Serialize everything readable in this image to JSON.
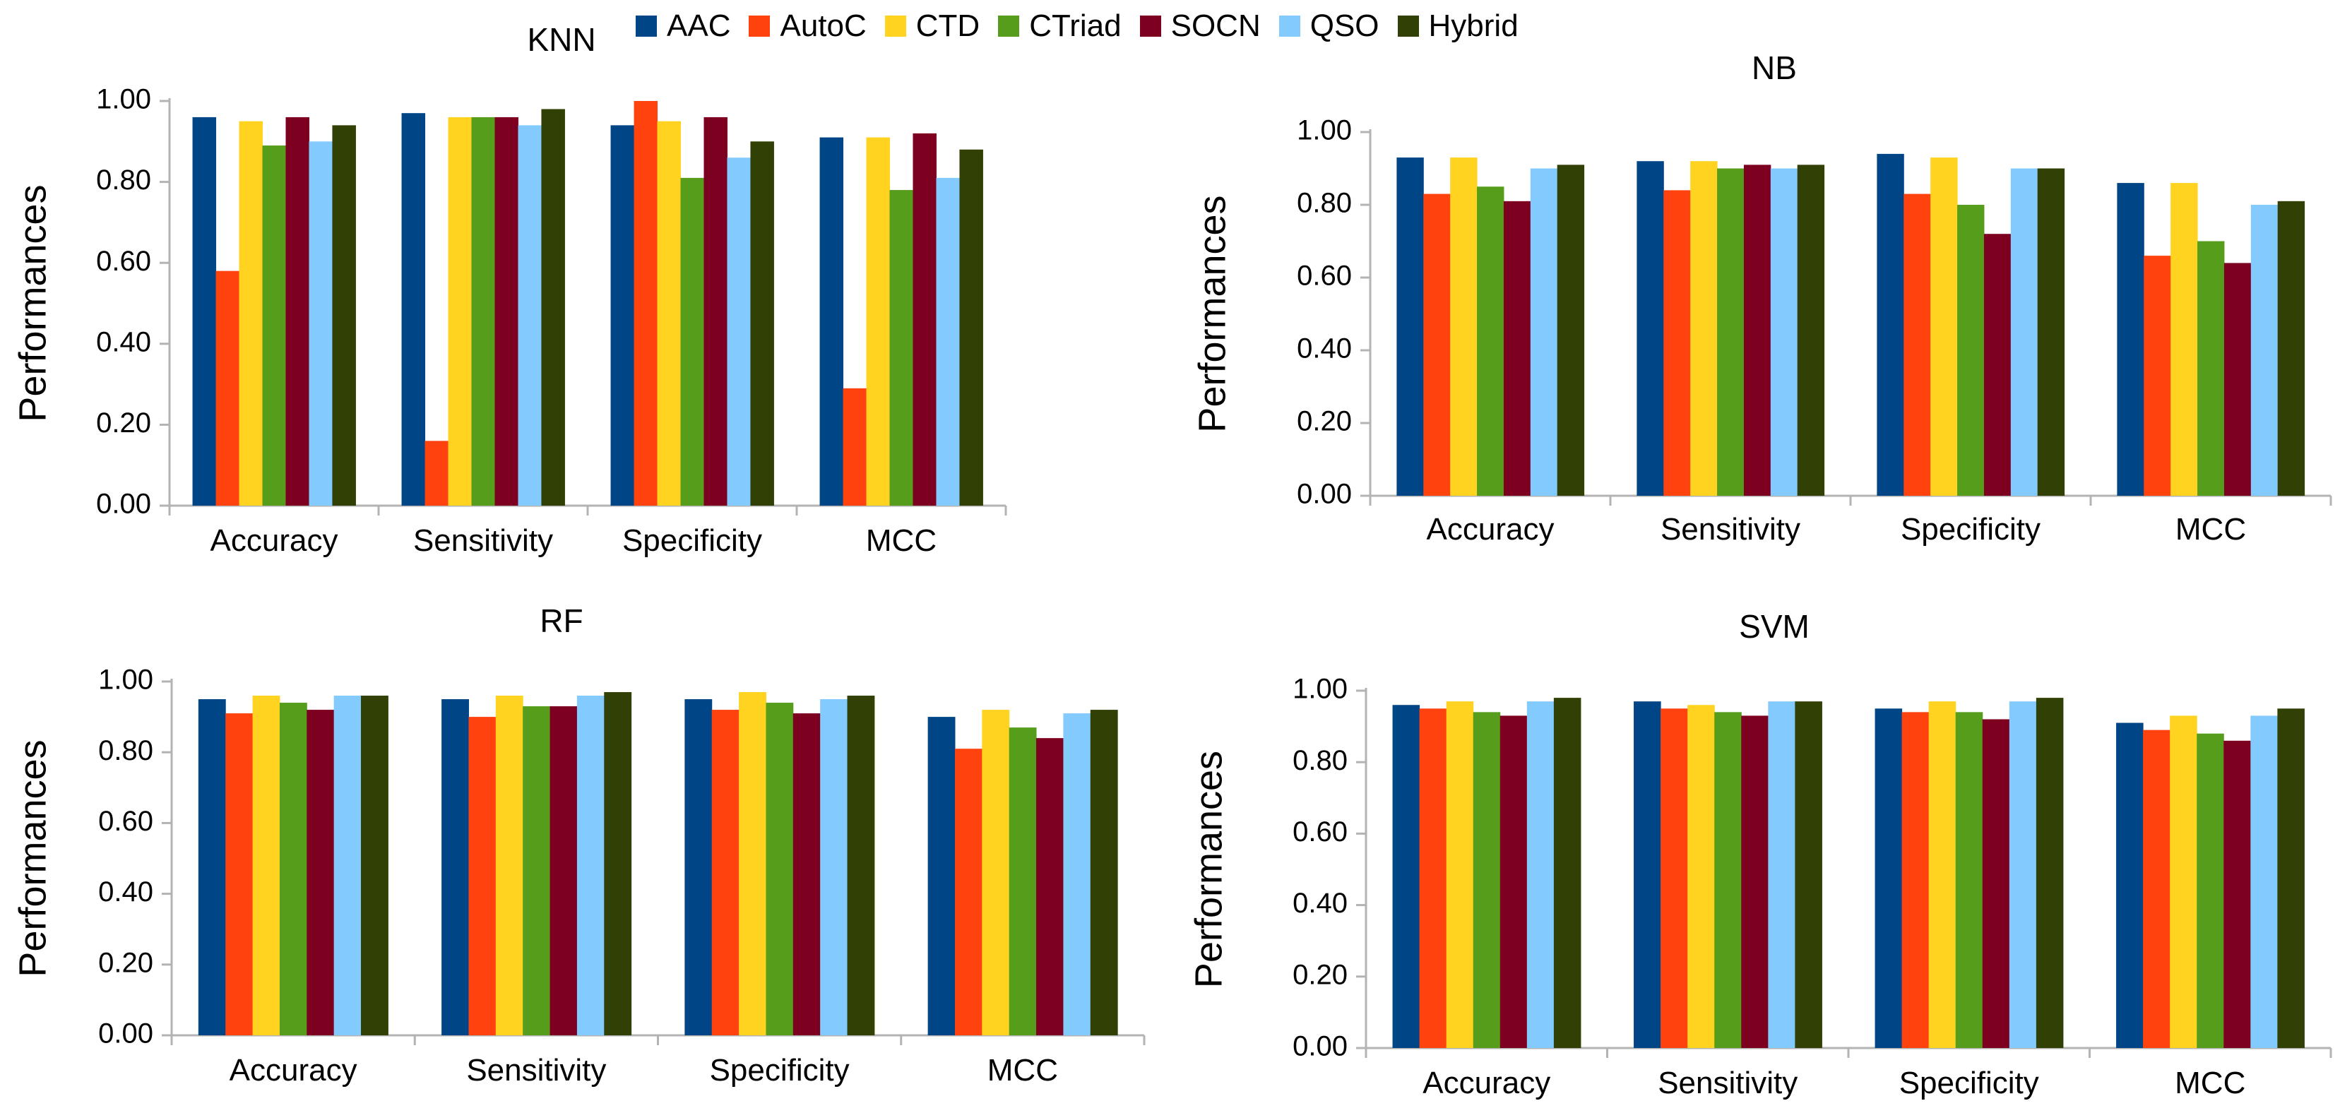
{
  "legend": {
    "position": "top-center"
  },
  "chart_data": [
    {
      "type": "bar",
      "title": "KNN",
      "ylabel": "Performances",
      "xlabel": "",
      "ylim": [
        0,
        1
      ],
      "yticks": [
        "0.00",
        "0.20",
        "0.40",
        "0.60",
        "0.80",
        "1.00"
      ],
      "categories": [
        "Accuracy",
        "Sensitivity",
        "Specificity",
        "MCC"
      ],
      "series": [
        {
          "name": "AAC",
          "color": "#004586",
          "values": [
            0.96,
            0.97,
            0.94,
            0.91
          ]
        },
        {
          "name": "AutoC",
          "color": "#ff420e",
          "values": [
            0.58,
            0.16,
            1.0,
            0.29
          ]
        },
        {
          "name": "CTD",
          "color": "#ffd320",
          "values": [
            0.95,
            0.96,
            0.95,
            0.91
          ]
        },
        {
          "name": "CTriad",
          "color": "#579d1c",
          "values": [
            0.89,
            0.96,
            0.81,
            0.78
          ]
        },
        {
          "name": "SOCN",
          "color": "#7e0021",
          "values": [
            0.96,
            0.96,
            0.96,
            0.92
          ]
        },
        {
          "name": "QSO",
          "color": "#83caff",
          "values": [
            0.9,
            0.94,
            0.86,
            0.81
          ]
        },
        {
          "name": "Hybrid",
          "color": "#314004",
          "values": [
            0.94,
            0.98,
            0.9,
            0.88
          ]
        }
      ]
    },
    {
      "type": "bar",
      "title": "NB",
      "ylabel": "Performances",
      "xlabel": "",
      "ylim": [
        0,
        1
      ],
      "yticks": [
        "0.00",
        "0.20",
        "0.40",
        "0.60",
        "0.80",
        "1.00"
      ],
      "categories": [
        "Accuracy",
        "Sensitivity",
        "Specificity",
        "MCC"
      ],
      "series": [
        {
          "name": "AAC",
          "color": "#004586",
          "values": [
            0.93,
            0.92,
            0.94,
            0.86
          ]
        },
        {
          "name": "AutoC",
          "color": "#ff420e",
          "values": [
            0.83,
            0.84,
            0.83,
            0.66
          ]
        },
        {
          "name": "CTD",
          "color": "#ffd320",
          "values": [
            0.93,
            0.92,
            0.93,
            0.86
          ]
        },
        {
          "name": "CTriad",
          "color": "#579d1c",
          "values": [
            0.85,
            0.9,
            0.8,
            0.7
          ]
        },
        {
          "name": "SOCN",
          "color": "#7e0021",
          "values": [
            0.81,
            0.91,
            0.72,
            0.64
          ]
        },
        {
          "name": "QSO",
          "color": "#83caff",
          "values": [
            0.9,
            0.9,
            0.9,
            0.8
          ]
        },
        {
          "name": "Hybrid",
          "color": "#314004",
          "values": [
            0.91,
            0.91,
            0.9,
            0.81
          ]
        }
      ]
    },
    {
      "type": "bar",
      "title": "RF",
      "ylabel": "Performances",
      "xlabel": "",
      "ylim": [
        0,
        1
      ],
      "yticks": [
        "0.00",
        "0.20",
        "0.40",
        "0.60",
        "0.80",
        "1.00"
      ],
      "categories": [
        "Accuracy",
        "Sensitivity",
        "Specificity",
        "MCC"
      ],
      "series": [
        {
          "name": "AAC",
          "color": "#004586",
          "values": [
            0.95,
            0.95,
            0.95,
            0.9
          ]
        },
        {
          "name": "AutoC",
          "color": "#ff420e",
          "values": [
            0.91,
            0.9,
            0.92,
            0.81
          ]
        },
        {
          "name": "CTD",
          "color": "#ffd320",
          "values": [
            0.96,
            0.96,
            0.97,
            0.92
          ]
        },
        {
          "name": "CTriad",
          "color": "#579d1c",
          "values": [
            0.94,
            0.93,
            0.94,
            0.87
          ]
        },
        {
          "name": "SOCN",
          "color": "#7e0021",
          "values": [
            0.92,
            0.93,
            0.91,
            0.84
          ]
        },
        {
          "name": "QSO",
          "color": "#83caff",
          "values": [
            0.96,
            0.96,
            0.95,
            0.91
          ]
        },
        {
          "name": "Hybrid",
          "color": "#314004",
          "values": [
            0.96,
            0.97,
            0.96,
            0.92
          ]
        }
      ]
    },
    {
      "type": "bar",
      "title": "SVM",
      "ylabel": "Performances",
      "xlabel": "",
      "ylim": [
        0,
        1
      ],
      "yticks": [
        "0.00",
        "0.20",
        "0.40",
        "0.60",
        "0.80",
        "1.00"
      ],
      "categories": [
        "Accuracy",
        "Sensitivity",
        "Specificity",
        "MCC"
      ],
      "series": [
        {
          "name": "AAC",
          "color": "#004586",
          "values": [
            0.96,
            0.97,
            0.95,
            0.91
          ]
        },
        {
          "name": "AutoC",
          "color": "#ff420e",
          "values": [
            0.95,
            0.95,
            0.94,
            0.89
          ]
        },
        {
          "name": "CTD",
          "color": "#ffd320",
          "values": [
            0.97,
            0.96,
            0.97,
            0.93
          ]
        },
        {
          "name": "CTriad",
          "color": "#579d1c",
          "values": [
            0.94,
            0.94,
            0.94,
            0.88
          ]
        },
        {
          "name": "SOCN",
          "color": "#7e0021",
          "values": [
            0.93,
            0.93,
            0.92,
            0.86
          ]
        },
        {
          "name": "QSO",
          "color": "#83caff",
          "values": [
            0.97,
            0.97,
            0.97,
            0.93
          ]
        },
        {
          "name": "Hybrid",
          "color": "#314004",
          "values": [
            0.98,
            0.97,
            0.98,
            0.95
          ]
        }
      ]
    }
  ]
}
